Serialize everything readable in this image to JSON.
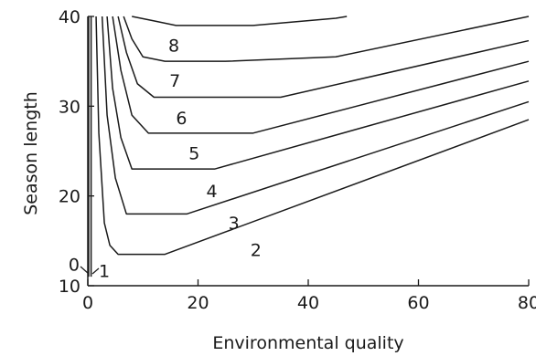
{
  "chart_data": {
    "type": "line",
    "title": "",
    "xlabel": "Environmental quality",
    "ylabel": "Season length",
    "xlim": [
      0,
      80
    ],
    "ylim": [
      10,
      40
    ],
    "x_ticks": [
      0,
      20,
      40,
      60,
      80
    ],
    "y_ticks": [
      10,
      20,
      30,
      40
    ],
    "grid": false,
    "legend": "none",
    "line_color": "#1a1a1a",
    "series": [
      {
        "name": "0",
        "points": [
          [
            0.15,
            11
          ],
          [
            0.15,
            40
          ]
        ]
      },
      {
        "name": "1",
        "points": [
          [
            0.6,
            11
          ],
          [
            0.6,
            40
          ]
        ]
      },
      {
        "name": "2",
        "points": [
          [
            1.5,
            40
          ],
          [
            2,
            27
          ],
          [
            3,
            17
          ],
          [
            4,
            14.5
          ],
          [
            5.5,
            13.5
          ],
          [
            14,
            13.5
          ],
          [
            80,
            28.5
          ]
        ]
      },
      {
        "name": "3",
        "points": [
          [
            2.6,
            40
          ],
          [
            3.5,
            29
          ],
          [
            5,
            22
          ],
          [
            7,
            18
          ],
          [
            12,
            18
          ],
          [
            18,
            18
          ],
          [
            80,
            30.5
          ]
        ]
      },
      {
        "name": "4",
        "points": [
          [
            3.5,
            40
          ],
          [
            4.5,
            32
          ],
          [
            6,
            26.5
          ],
          [
            8,
            23
          ],
          [
            15,
            23
          ],
          [
            23,
            23
          ],
          [
            80,
            32.8
          ]
        ]
      },
      {
        "name": "5",
        "points": [
          [
            4.5,
            40
          ],
          [
            6,
            34
          ],
          [
            8,
            29
          ],
          [
            11,
            27
          ],
          [
            18,
            27
          ],
          [
            30,
            27
          ],
          [
            80,
            35
          ]
        ]
      },
      {
        "name": "6",
        "points": [
          [
            5.5,
            40
          ],
          [
            7,
            36
          ],
          [
            9,
            32.5
          ],
          [
            12,
            31
          ],
          [
            20,
            31
          ],
          [
            35,
            31
          ],
          [
            80,
            37.3
          ]
        ]
      },
      {
        "name": "7",
        "points": [
          [
            6.5,
            40
          ],
          [
            8,
            37.5
          ],
          [
            10,
            35.5
          ],
          [
            14,
            35
          ],
          [
            25,
            35
          ],
          [
            45,
            35.5
          ],
          [
            80,
            40
          ]
        ]
      },
      {
        "name": "8",
        "points": [
          [
            8,
            40
          ],
          [
            12,
            39.5
          ],
          [
            16,
            39
          ],
          [
            30,
            39
          ],
          [
            45,
            39.8
          ],
          [
            47,
            40
          ]
        ]
      }
    ],
    "annotations": [
      {
        "text": "0",
        "x": -2.5,
        "y": 12.4
      },
      {
        "text": "1",
        "x": 3.0,
        "y": 11.7
      },
      {
        "text": "2",
        "x": 30.5,
        "y": 14.0
      },
      {
        "text": "3",
        "x": 26.5,
        "y": 17.0
      },
      {
        "text": "4",
        "x": 22.5,
        "y": 20.6
      },
      {
        "text": "5",
        "x": 19.3,
        "y": 24.8
      },
      {
        "text": "6",
        "x": 17.0,
        "y": 28.7
      },
      {
        "text": "7",
        "x": 15.8,
        "y": 32.9
      },
      {
        "text": "8",
        "x": 15.6,
        "y": 36.8
      }
    ]
  }
}
